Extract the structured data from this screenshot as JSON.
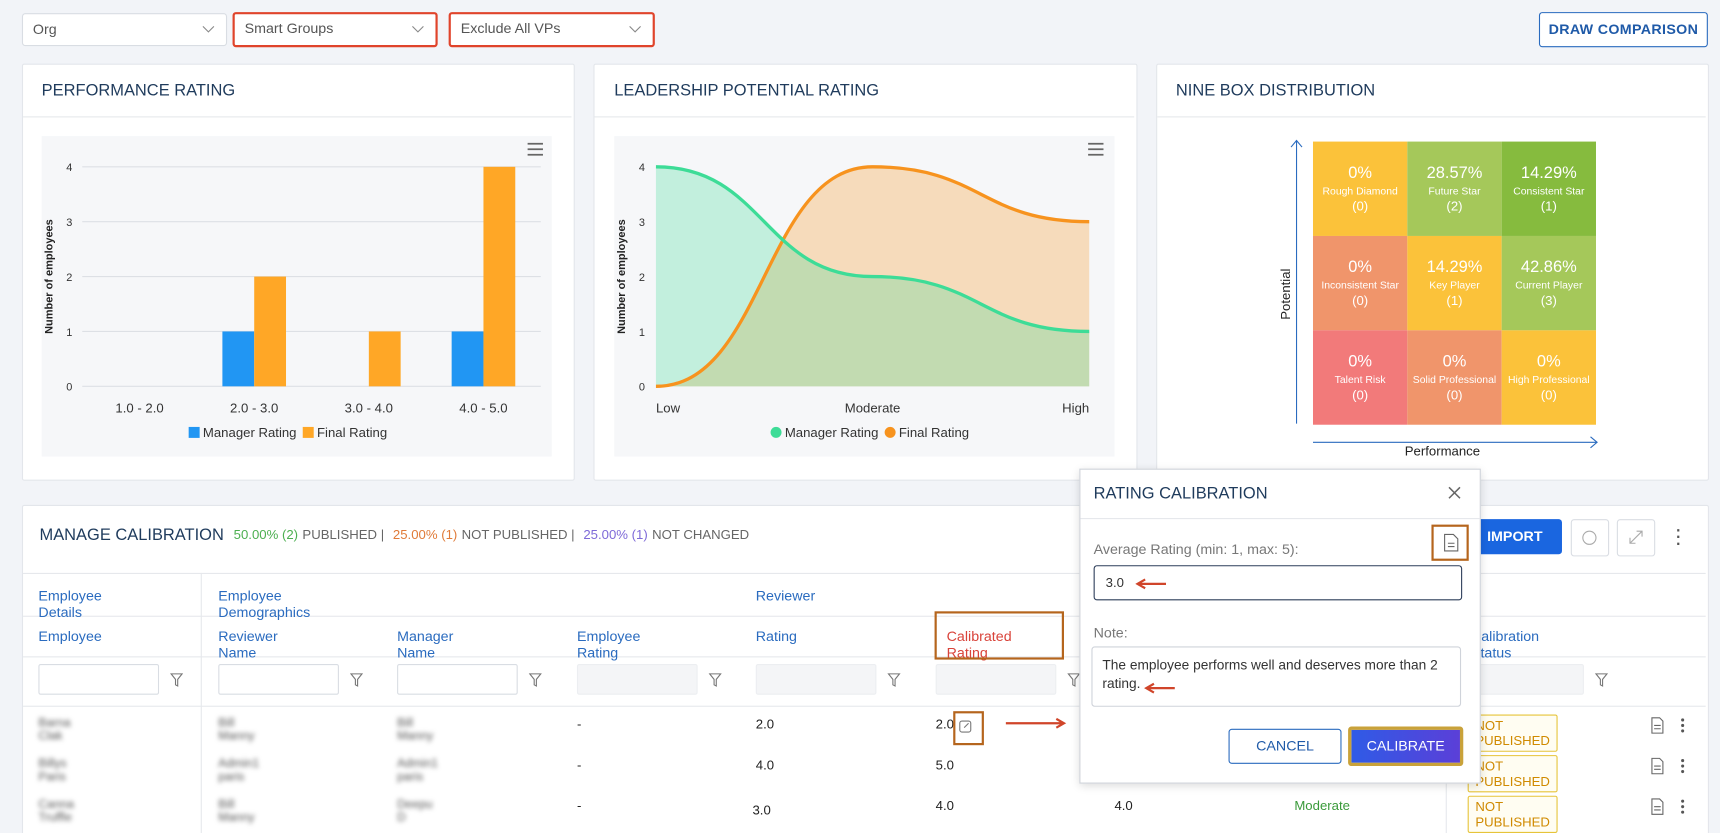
{
  "filters": {
    "org": "Org",
    "smart_groups": "Smart Groups",
    "exclude": "Exclude All VPs"
  },
  "draw_comparison": "DRAW COMPARISON",
  "chart_data": [
    {
      "type": "bar",
      "title": "PERFORMANCE RATING",
      "y_label": "Number of employees",
      "categories": [
        "1.0 - 2.0",
        "2.0 - 3.0",
        "3.0 - 4.0",
        "4.0 - 5.0"
      ],
      "series": [
        {
          "name": "Manager Rating",
          "color": "#2196f3",
          "values": [
            0,
            1,
            0,
            1
          ]
        },
        {
          "name": "Final Rating",
          "color": "#ffa726",
          "values": [
            0,
            2,
            1,
            4
          ]
        }
      ],
      "ylim": [
        0,
        4
      ],
      "yticks": [
        0,
        1,
        2,
        3,
        4
      ],
      "grid": true
    },
    {
      "type": "area",
      "title": "LEADERSHIP POTENTIAL RATING",
      "y_label": "Number of employees",
      "categories": [
        "Low",
        "Moderate",
        "High"
      ],
      "series": [
        {
          "name": "Manager Rating",
          "color": "#3ddc97",
          "values": [
            4,
            2,
            1
          ]
        },
        {
          "name": "Final Rating",
          "color": "#f7931e",
          "values": [
            0,
            4,
            3
          ]
        }
      ],
      "ylim": [
        0,
        4
      ],
      "yticks": [
        0,
        1,
        2,
        3,
        4
      ],
      "grid": false
    }
  ],
  "nine_box": {
    "title": "NINE BOX DISTRIBUTION",
    "x_label": "Performance",
    "y_label": "Potential",
    "cells": [
      {
        "percent": "0%",
        "label": "Rough Diamond",
        "count": "(0)",
        "color": "#fbc23a"
      },
      {
        "percent": "28.57%",
        "label": "Future Star",
        "count": "(2)",
        "color": "#a5c85a"
      },
      {
        "percent": "14.29%",
        "label": "Consistent Star",
        "count": "(1)",
        "color": "#86bb3e"
      },
      {
        "percent": "0%",
        "label": "Inconsistent Star",
        "count": "(0)",
        "color": "#f0956b"
      },
      {
        "percent": "14.29%",
        "label": "Key Player",
        "count": "(1)",
        "color": "#fbc23a"
      },
      {
        "percent": "42.86%",
        "label": "Current Player",
        "count": "(3)",
        "color": "#a5c85a"
      },
      {
        "percent": "0%",
        "label": "Talent Risk",
        "count": "(0)",
        "color": "#f27a7a"
      },
      {
        "percent": "0%",
        "label": "Solid Professional",
        "count": "(0)",
        "color": "#f0956b"
      },
      {
        "percent": "0%",
        "label": "High Professional",
        "count": "(0)",
        "color": "#fbc23a"
      }
    ]
  },
  "calibration": {
    "title": "MANAGE CALIBRATION",
    "stats": [
      {
        "value": "50.00% (2)",
        "label": "PUBLISHED |",
        "color": "#4caf50"
      },
      {
        "value": "25.00% (1)",
        "label": "NOT PUBLISHED |",
        "color": "#e07b39"
      },
      {
        "value": "25.00% (1)",
        "label": "NOT CHANGED",
        "color": "#7e6ad8"
      }
    ],
    "import": "IMPORT",
    "table": {
      "groups": [
        "Employee Details",
        "Employee Demographics",
        "Reviewer"
      ],
      "columns": [
        "Employee",
        "Reviewer Name",
        "Manager Name",
        "Employee Rating",
        "Rating",
        "Calibrated Rating",
        "Calibration Status"
      ],
      "rows": [
        {
          "employee": "Barna Clak",
          "reviewer": "Bill Manny",
          "manager": "Bill Manny",
          "employee_rating": "-",
          "rating": "2.0",
          "calibrated": "2.0",
          "status": "NOT PUBLISHED"
        },
        {
          "employee": "Billys Paris",
          "reviewer": "Admin1 paris",
          "manager": "Admin1 paris",
          "employee_rating": "-",
          "rating": "4.0",
          "calibrated": "5.0",
          "status": "NOT PUBLISHED"
        },
        {
          "employee": "Canna Truffle",
          "reviewer": "Bill Manny",
          "manager": "Deepu D",
          "employee_rating": "-",
          "rating": "3.0",
          "calibrated": "4.0",
          "final": "4.0",
          "potential": "Moderate",
          "status": "NOT PUBLISHED"
        }
      ]
    }
  },
  "modal": {
    "title": "RATING CALIBRATION",
    "average_label": "Average Rating (min: 1, max: 5):",
    "average_value": "3.0",
    "note_label": "Note:",
    "note": "The employee performs well and deserves more than 2 rating.",
    "cancel": "CANCEL",
    "calibrate": "CALIBRATE"
  }
}
